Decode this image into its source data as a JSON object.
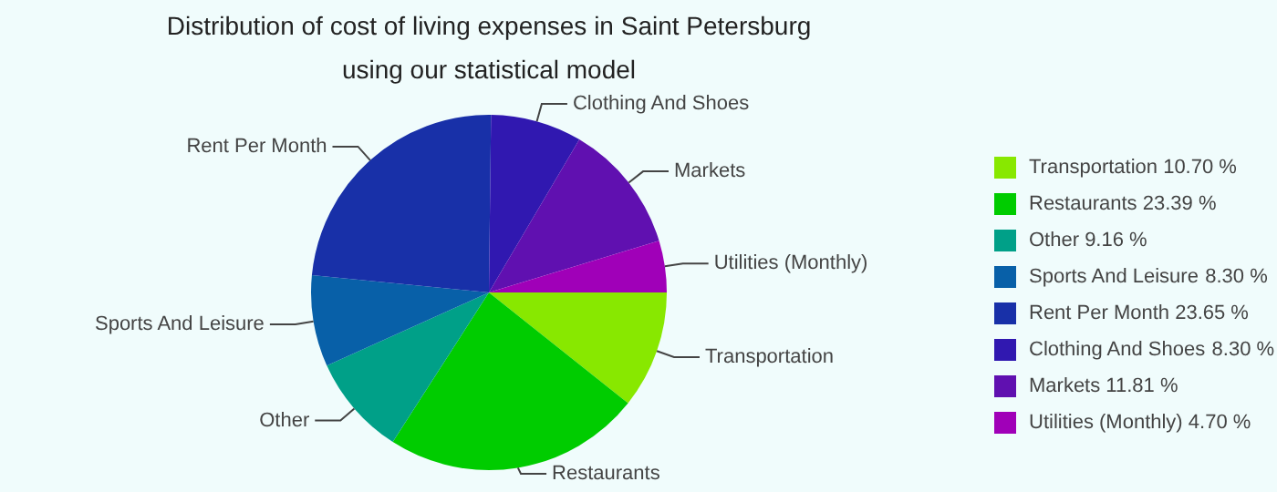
{
  "chart_data": {
    "type": "pie",
    "title": "Distribution of cost of living expenses in Saint Petersburg using our statistical model",
    "categories": [
      "Transportation",
      "Restaurants",
      "Other",
      "Sports And Leisure",
      "Rent Per Month",
      "Clothing And Shoes",
      "Markets",
      "Utilities (Monthly)"
    ],
    "values": [
      10.7,
      23.39,
      9.16,
      8.3,
      23.65,
      8.3,
      11.81,
      4.7
    ],
    "value_labels": [
      "10.70 %",
      "23.39 %",
      "9.16 %",
      "8.30 %",
      "23.65 %",
      "8.30 %",
      "11.81 %",
      "4.70 %"
    ],
    "colors": [
      "#88e800",
      "#00cc00",
      "#00a088",
      "#0860a8",
      "#1830a8",
      "#3018b0",
      "#6010b0",
      "#a000b8"
    ],
    "legend": "right"
  }
}
